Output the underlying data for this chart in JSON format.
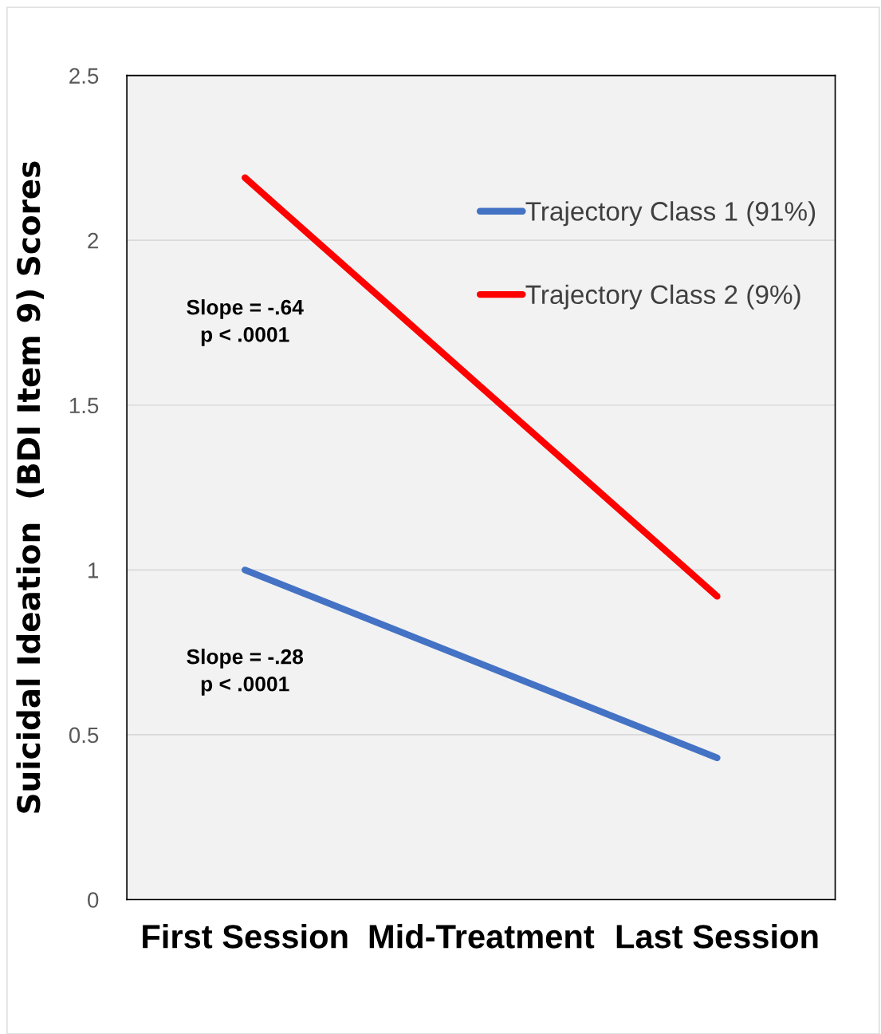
{
  "chart_data": {
    "type": "line",
    "ylabel": "Suicidal Ideation  (BDI Item 9) Scores",
    "categories": [
      "First Session",
      "Mid-Treatment",
      "Last Session"
    ],
    "series": [
      {
        "name": "Trajectory Class 1 (91%)",
        "color": "#4472c4",
        "values": [
          1.0,
          0.715,
          0.43
        ]
      },
      {
        "name": "Trajectory Class 2 (9%)",
        "color": "#ff0000",
        "values": [
          2.19,
          1.555,
          0.92
        ]
      }
    ],
    "annotations": [
      "Slope = -.28\np < .0001",
      "Slope = -.64\np < .0001"
    ],
    "ylim": [
      0,
      2.5
    ],
    "yticks": [
      0,
      0.5,
      1,
      1.5,
      2,
      2.5
    ],
    "grid": "y",
    "legend": "top right",
    "marker": "none",
    "line_style": "solid"
  }
}
